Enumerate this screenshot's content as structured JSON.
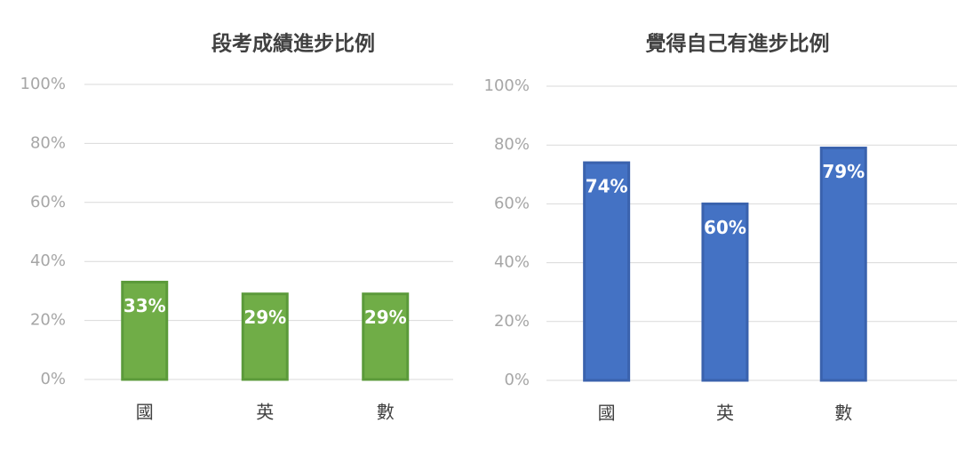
{
  "chart_data": [
    {
      "type": "bar",
      "title": "段考成績進步比例",
      "categories": [
        "國",
        "英",
        "數"
      ],
      "values": [
        33,
        29,
        29
      ],
      "value_labels": [
        "33%",
        "29%",
        "29%"
      ],
      "color": "#70ad47",
      "border_color": "#5b9a3a",
      "ylim": [
        0,
        100
      ],
      "yticks": [
        {
          "value": 0,
          "label": "0%"
        },
        {
          "value": 20,
          "label": "20%"
        },
        {
          "value": 40,
          "label": "40%"
        },
        {
          "value": 60,
          "label": "60%"
        },
        {
          "value": 80,
          "label": "80%"
        },
        {
          "value": 100,
          "label": "100%"
        }
      ],
      "grid": true
    },
    {
      "type": "bar",
      "title": "覺得自己有進步比例",
      "categories": [
        "國",
        "英",
        "數"
      ],
      "values": [
        74,
        60,
        79
      ],
      "value_labels": [
        "74%",
        "60%",
        "79%"
      ],
      "color": "#4472c4",
      "border_color": "#3a62ad",
      "ylim": [
        0,
        100
      ],
      "yticks": [
        {
          "value": 0,
          "label": "0%"
        },
        {
          "value": 20,
          "label": "20%"
        },
        {
          "value": 40,
          "label": "40%"
        },
        {
          "value": 60,
          "label": "60%"
        },
        {
          "value": 80,
          "label": "80%"
        },
        {
          "value": 100,
          "label": "100%"
        }
      ],
      "grid": true
    }
  ]
}
